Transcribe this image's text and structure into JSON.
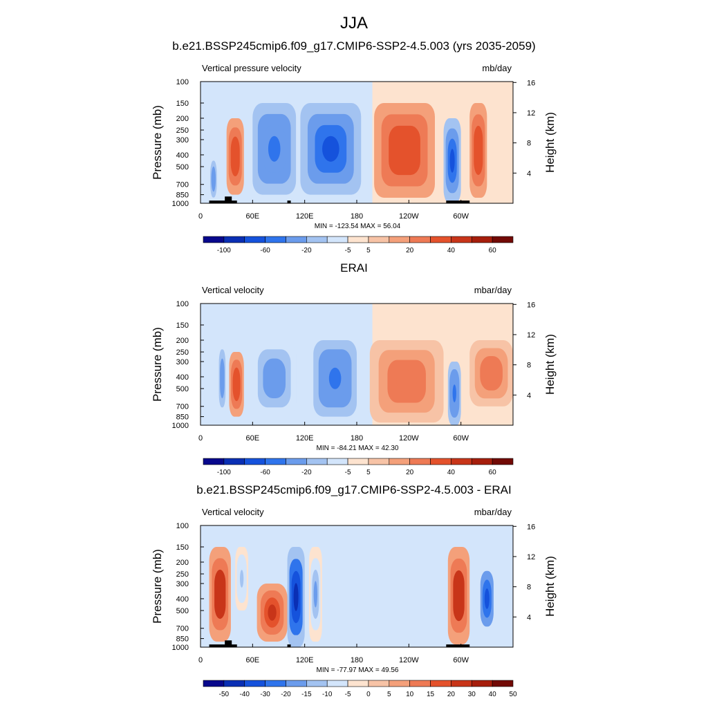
{
  "figure": {
    "title": "JJA"
  },
  "palette": {
    "colors": [
      "#08088c",
      "#0a2fb4",
      "#1552dc",
      "#2f74ec",
      "#6b9cec",
      "#a3c3f1",
      "#d3e5fb",
      "#fde3cf",
      "#f7c3a6",
      "#f4a07a",
      "#ee7a55",
      "#e4522c",
      "#c83519",
      "#a61e0c",
      "#720a05"
    ]
  },
  "chart_data": [
    {
      "type": "heatmap",
      "title": "b.e21.BSSP245cmip6.f09_g17.CMIP6-SSP2-4.5.003 (yrs 2035-2059)",
      "left_label": "Vertical pressure velocity",
      "right_label": "mb/day",
      "ylabel": "Pressure (mb)",
      "ylabel_right": "Height (km)",
      "x_ticks": [
        "0",
        "60E",
        "120E",
        "180",
        "120W",
        "60W"
      ],
      "x_tick_lon": [
        0,
        60,
        120,
        180,
        240,
        300
      ],
      "xlim": [
        0,
        360
      ],
      "y_ticks": [
        "100",
        "150",
        "200",
        "250",
        "300",
        "400",
        "500",
        "700",
        "850",
        "1000"
      ],
      "y_tick_p": [
        100,
        150,
        200,
        250,
        300,
        400,
        500,
        700,
        850,
        1000
      ],
      "ylim_mb": [
        1000,
        100
      ],
      "height_ticks": [
        "4",
        "8",
        "12",
        "16"
      ],
      "height_km": [
        4,
        8,
        12,
        16
      ],
      "stats": "MIN = -123.54  MAX =  56.04",
      "colorbar_labels": [
        "-100",
        "-60",
        "-20",
        "-5",
        "5",
        "20",
        "40",
        "60"
      ],
      "colorbar_label_positions": [
        1,
        3,
        5,
        7,
        8,
        10,
        12,
        14
      ],
      "features": [
        {
          "lon_min": 115,
          "lon_max": 185,
          "p_min": 150,
          "p_max": 850,
          "value": -60
        },
        {
          "lon_min": 60,
          "lon_max": 110,
          "p_min": 150,
          "p_max": 850,
          "value": -40
        },
        {
          "lon_min": 200,
          "lon_max": 270,
          "p_min": 150,
          "p_max": 900,
          "value": 30
        },
        {
          "lon_min": 30,
          "lon_max": 50,
          "p_min": 200,
          "p_max": 850,
          "value": 30
        },
        {
          "lon_min": 280,
          "lon_max": 300,
          "p_min": 200,
          "p_max": 1000,
          "value": -60
        },
        {
          "lon_min": 310,
          "lon_max": 330,
          "p_min": 150,
          "p_max": 900,
          "value": 30
        },
        {
          "lon_min": 10,
          "lon_max": 20,
          "p_min": 400,
          "p_max": 1000,
          "value": -30
        }
      ],
      "topography": [
        {
          "lon_min": 10,
          "lon_max": 42,
          "p_top": 950
        },
        {
          "lon_min": 28,
          "lon_max": 36,
          "p_top": 880
        },
        {
          "lon_min": 100,
          "lon_max": 104,
          "p_top": 950
        },
        {
          "lon_min": 283,
          "lon_max": 310,
          "p_top": 950
        }
      ]
    },
    {
      "type": "heatmap",
      "title": "ERAI",
      "left_label": "Vertical velocity",
      "right_label": "mbar/day",
      "ylabel": "Pressure (mb)",
      "ylabel_right": "Height (km)",
      "x_ticks": [
        "0",
        "60E",
        "120E",
        "180",
        "120W",
        "60W"
      ],
      "x_tick_lon": [
        0,
        60,
        120,
        180,
        240,
        300
      ],
      "xlim": [
        0,
        360
      ],
      "y_ticks": [
        "100",
        "150",
        "200",
        "250",
        "300",
        "400",
        "500",
        "700",
        "850",
        "1000"
      ],
      "y_tick_p": [
        100,
        150,
        200,
        250,
        300,
        400,
        500,
        700,
        850,
        1000
      ],
      "ylim_mb": [
        1000,
        100
      ],
      "height_ticks": [
        "4",
        "8",
        "12",
        "16"
      ],
      "height_km": [
        4,
        8,
        12,
        16
      ],
      "stats": "MIN = -84.21  MAX =  42.30",
      "colorbar_labels": [
        "-100",
        "-60",
        "-20",
        "-5",
        "5",
        "20",
        "40",
        "60"
      ],
      "colorbar_label_positions": [
        1,
        3,
        5,
        7,
        8,
        10,
        12,
        14
      ],
      "features": [
        {
          "lon_min": 130,
          "lon_max": 180,
          "p_min": 200,
          "p_max": 850,
          "value": -40
        },
        {
          "lon_min": 60,
          "lon_max": 110,
          "p_min": 200,
          "p_max": 850,
          "value": -30
        },
        {
          "lon_min": 195,
          "lon_max": 280,
          "p_min": 200,
          "p_max": 950,
          "value": 20
        },
        {
          "lon_min": 33,
          "lon_max": 50,
          "p_min": 250,
          "p_max": 850,
          "value": 30
        },
        {
          "lon_min": 20,
          "lon_max": 30,
          "p_min": 200,
          "p_max": 850,
          "value": -30
        },
        {
          "lon_min": 285,
          "lon_max": 300,
          "p_min": 300,
          "p_max": 1000,
          "value": -40
        },
        {
          "lon_min": 310,
          "lon_max": 360,
          "p_min": 200,
          "p_max": 700,
          "value": 20
        }
      ],
      "topography": []
    },
    {
      "type": "heatmap",
      "title": "b.e21.BSSP245cmip6.f09_g17.CMIP6-SSP2-4.5.003 - ERAI",
      "left_label": "Vertical velocity",
      "right_label": "mbar/day",
      "ylabel": "Pressure (mb)",
      "ylabel_right": "Height (km)",
      "x_ticks": [
        "0",
        "60E",
        "120E",
        "180",
        "120W",
        "60W"
      ],
      "x_tick_lon": [
        0,
        60,
        120,
        180,
        240,
        300
      ],
      "xlim": [
        0,
        360
      ],
      "y_ticks": [
        "100",
        "150",
        "200",
        "250",
        "300",
        "400",
        "500",
        "700",
        "850",
        "1000"
      ],
      "y_tick_p": [
        100,
        150,
        200,
        250,
        300,
        400,
        500,
        700,
        850,
        1000
      ],
      "ylim_mb": [
        1000,
        100
      ],
      "height_ticks": [
        "4",
        "8",
        "12",
        "16"
      ],
      "height_km": [
        4,
        8,
        12,
        16
      ],
      "stats": "MIN = -77.97  MAX =  49.56",
      "colorbar_labels": [
        "-50",
        "-40",
        "-30",
        "-20",
        "-15",
        "-10",
        "-5",
        "0",
        "5",
        "10",
        "15",
        "20",
        "30",
        "40",
        "50"
      ],
      "colorbar_label_positions": [
        1,
        2,
        3,
        4,
        5,
        6,
        7,
        8,
        9,
        10,
        11,
        12,
        13,
        14,
        15
      ],
      "features": [
        {
          "lon_min": 10,
          "lon_max": 35,
          "p_min": 150,
          "p_max": 900,
          "value": 30
        },
        {
          "lon_min": 65,
          "lon_max": 100,
          "p_min": 300,
          "p_max": 900,
          "value": 25
        },
        {
          "lon_min": 100,
          "lon_max": 120,
          "p_min": 150,
          "p_max": 1000,
          "value": -40
        },
        {
          "lon_min": 125,
          "lon_max": 140,
          "p_min": 150,
          "p_max": 900,
          "value": -15
        },
        {
          "lon_min": 285,
          "lon_max": 310,
          "p_min": 150,
          "p_max": 950,
          "value": 30
        },
        {
          "lon_min": 320,
          "lon_max": 340,
          "p_min": 200,
          "p_max": 800,
          "value": -30
        },
        {
          "lon_min": 40,
          "lon_max": 55,
          "p_min": 150,
          "p_max": 500,
          "value": -10
        }
      ],
      "topography": [
        {
          "lon_min": 10,
          "lon_max": 42,
          "p_top": 950
        },
        {
          "lon_min": 28,
          "lon_max": 36,
          "p_top": 880
        },
        {
          "lon_min": 100,
          "lon_max": 104,
          "p_top": 950
        },
        {
          "lon_min": 283,
          "lon_max": 310,
          "p_top": 950
        }
      ]
    }
  ]
}
